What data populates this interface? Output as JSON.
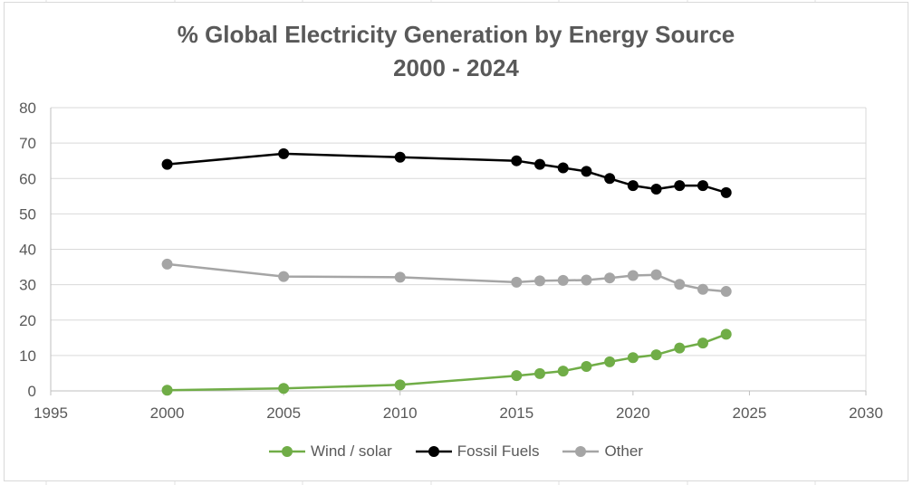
{
  "chart_data": {
    "type": "line",
    "title": "% Global Electricity Generation by Energy Source",
    "subtitle": "2000 - 2024",
    "xlim": [
      1995,
      2030
    ],
    "ylim": [
      0,
      80
    ],
    "x_ticks": [
      1995,
      2000,
      2005,
      2010,
      2015,
      2020,
      2025,
      2030
    ],
    "y_ticks": [
      0,
      10,
      20,
      30,
      40,
      50,
      60,
      70,
      80
    ],
    "grid": true,
    "legend_position": "bottom",
    "series": [
      {
        "name": "Wind / solar",
        "color": "#70ad47",
        "x": [
          2000,
          2005,
          2010,
          2015,
          2016,
          2017,
          2018,
          2019,
          2020,
          2021,
          2022,
          2023,
          2024
        ],
        "y": [
          0.2,
          0.7,
          1.7,
          4.3,
          4.9,
          5.6,
          6.9,
          8.2,
          9.4,
          10.2,
          12.1,
          13.5,
          16.0
        ]
      },
      {
        "name": "Fossil Fuels",
        "color": "#000000",
        "x": [
          2000,
          2005,
          2010,
          2015,
          2016,
          2017,
          2018,
          2019,
          2020,
          2021,
          2022,
          2023,
          2024
        ],
        "y": [
          64,
          67,
          66,
          65,
          64,
          63,
          62,
          60,
          58,
          57,
          58,
          58,
          56
        ]
      },
      {
        "name": "Other",
        "color": "#a5a5a5",
        "x": [
          2000,
          2005,
          2010,
          2015,
          2016,
          2017,
          2018,
          2019,
          2020,
          2021,
          2022,
          2023,
          2024
        ],
        "y": [
          35.8,
          32.3,
          32.1,
          30.7,
          31.1,
          31.2,
          31.3,
          31.9,
          32.6,
          32.8,
          30.1,
          28.7,
          28.1
        ]
      }
    ]
  }
}
